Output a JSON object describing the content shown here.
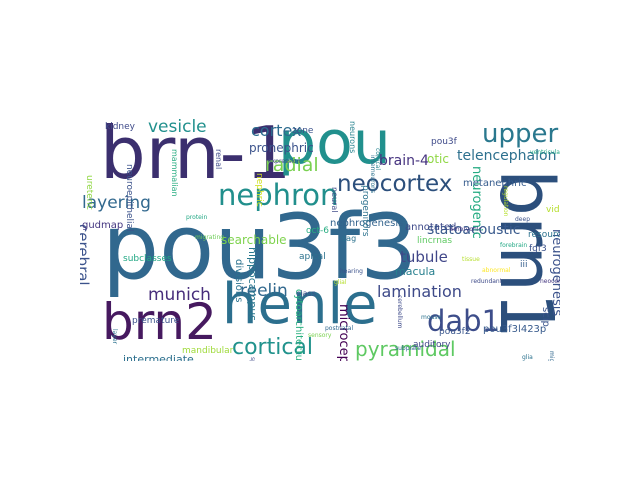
{
  "words": [
    {
      "text": "pou3f3",
      "color": "#31688e",
      "rotate": 0
    },
    {
      "text": "brn-1",
      "color": "#3b2f6e",
      "rotate": 0
    },
    {
      "text": "pou",
      "color": "#21908d",
      "rotate": 0
    },
    {
      "text": "brn1",
      "color": "#2c4f7c",
      "rotate": 90
    },
    {
      "text": "henle",
      "color": "#2c6f8e",
      "rotate": 0
    },
    {
      "text": "brn2",
      "color": "#46195f",
      "rotate": 0
    },
    {
      "text": "neocortex",
      "color": "#2c4f7c",
      "rotate": 0
    },
    {
      "text": "nephron",
      "color": "#218f8c",
      "rotate": 0
    },
    {
      "text": "upper",
      "color": "#2a788e",
      "rotate": 0
    },
    {
      "text": "dab1",
      "color": "#3d4d8a",
      "rotate": 0
    },
    {
      "text": "cortical",
      "color": "#20928c",
      "rotate": 0
    },
    {
      "text": "pyramidal",
      "color": "#5ec962",
      "rotate": 0
    },
    {
      "text": "cortex",
      "color": "#2c6b8e",
      "rotate": 0
    },
    {
      "text": "layering",
      "color": "#31688e",
      "rotate": 0
    },
    {
      "text": "vesicle",
      "color": "#21908d",
      "rotate": 0
    },
    {
      "text": "radial",
      "color": "#7ad151",
      "rotate": 0
    },
    {
      "text": "lamination",
      "color": "#3e4a89",
      "rotate": 0
    },
    {
      "text": "munich",
      "color": "#472d7b",
      "rotate": 0
    },
    {
      "text": "reelin",
      "color": "#31688e",
      "rotate": 0
    },
    {
      "text": "cerebral",
      "color": "#3b528b",
      "rotate": 90
    },
    {
      "text": "tubule",
      "color": "#404688",
      "rotate": 0
    },
    {
      "text": "statoacoustic",
      "color": "#38598c",
      "rotate": 0
    },
    {
      "text": "telencephalon",
      "color": "#2d708e",
      "rotate": 0
    },
    {
      "text": "brain-4",
      "color": "#46337f",
      "rotate": 0
    },
    {
      "text": "otic",
      "color": "#8fd744",
      "rotate": 0
    },
    {
      "text": "pronephric",
      "color": "#3b528b",
      "rotate": 0
    },
    {
      "text": "searchable",
      "color": "#7fd34e",
      "rotate": 0
    },
    {
      "text": "neurogenic",
      "color": "#25ab82",
      "rotate": 90
    },
    {
      "text": "neurogenesis",
      "color": "#3b528b",
      "rotate": 90
    },
    {
      "text": "nephrogenesis",
      "color": "#33638d",
      "rotate": 0
    },
    {
      "text": "microcephaly",
      "color": "#440154",
      "rotate": 90
    },
    {
      "text": "annotated",
      "color": "#3e4a89",
      "rotate": 0
    },
    {
      "text": "macula",
      "color": "#277f8e",
      "rotate": 0
    },
    {
      "text": "hippocampus",
      "color": "#2a788e",
      "rotate": 90
    },
    {
      "text": "divisions",
      "color": "#2c728e",
      "rotate": 90
    },
    {
      "text": "intermediate",
      "color": "#2d708e",
      "rotate": 0
    },
    {
      "text": "mandibular",
      "color": "#9fda3a",
      "rotate": 0
    },
    {
      "text": "auditory",
      "color": "#404688",
      "rotate": 0
    },
    {
      "text": "pou3f2",
      "color": "#39568c",
      "rotate": 0
    },
    {
      "text": "pou3f3l423p",
      "color": "#375a8c",
      "rotate": 0
    },
    {
      "text": "scip",
      "color": "#3a548c",
      "rotate": 90
    },
    {
      "text": "premature",
      "color": "#3b528b",
      "rotate": 0
    },
    {
      "text": "cytoarchitecture",
      "color": "#2ab07f",
      "rotate": 90
    },
    {
      "text": "ureteric",
      "color": "#90d743",
      "rotate": 90
    },
    {
      "text": "subclasses",
      "color": "#22a884",
      "rotate": 0
    },
    {
      "text": "neuroepithelial",
      "color": "#3b528b",
      "rotate": 90
    },
    {
      "text": "gudmap",
      "color": "#453781",
      "rotate": 0
    },
    {
      "text": "metanephric",
      "color": "#365c8d",
      "rotate": 0
    },
    {
      "text": "resource",
      "color": "#2c728e",
      "rotate": 0
    },
    {
      "text": "fgf3",
      "color": "#3b528b",
      "rotate": 0
    },
    {
      "text": "iii",
      "color": "#355f8d",
      "rotate": 0
    },
    {
      "text": "vidir",
      "color": "#b5de2b",
      "rotate": 0
    },
    {
      "text": "oct-6",
      "color": "#27ad81",
      "rotate": 0
    },
    {
      "text": "apical",
      "color": "#2c728e",
      "rotate": 0
    },
    {
      "text": "class",
      "color": "#3b528b",
      "rotate": 0
    },
    {
      "text": "sag",
      "color": "#2c728e",
      "rotate": 0
    },
    {
      "text": "lincrnas",
      "color": "#5ec962",
      "rotate": 0
    },
    {
      "text": "renal",
      "color": "#3e4a89",
      "rotate": 90
    },
    {
      "text": "neural",
      "color": "#3e4a89",
      "rotate": 90
    },
    {
      "text": "neurons",
      "color": "#26828e",
      "rotate": 90
    },
    {
      "text": "mammalian",
      "color": "#27ad81",
      "rotate": 90
    },
    {
      "text": "nephric",
      "color": "#cfe11c",
      "rotate": 90
    },
    {
      "text": "zone",
      "color": "#3b528b",
      "rotate": 0
    },
    {
      "text": "kidney",
      "color": "#3e4a89",
      "rotate": 0
    },
    {
      "text": "progenitors",
      "color": "#2c728e",
      "rotate": 90
    },
    {
      "text": "pou3f",
      "color": "#3e4a89",
      "rotate": 0
    },
    {
      "text": "glial",
      "color": "#b5de2b",
      "rotate": 0
    },
    {
      "text": "subplate",
      "color": "#31688e",
      "rotate": 0
    },
    {
      "text": "migrating",
      "color": "#6ece58",
      "rotate": 0
    },
    {
      "text": "interneurons",
      "color": "#2c728e",
      "rotate": 90
    },
    {
      "text": "regulation",
      "color": "#b5de2b",
      "rotate": 90
    },
    {
      "text": "embryonic",
      "color": "#453781",
      "rotate": 0
    },
    {
      "text": "cerebellum",
      "color": "#3e4a89",
      "rotate": 90
    },
    {
      "text": "forebrain",
      "color": "#22a884",
      "rotate": 0
    },
    {
      "text": "abnormal",
      "color": "#fde725",
      "rotate": 0
    },
    {
      "text": "postnatal",
      "color": "#31688e",
      "rotate": 0
    },
    {
      "text": "cortical",
      "color": "#26828e",
      "rotate": 90
    },
    {
      "text": "expression",
      "color": "#3e4a89",
      "rotate": 0
    },
    {
      "text": "mouse",
      "color": "#2c728e",
      "rotate": 0
    },
    {
      "text": "sensory",
      "color": "#7ad151",
      "rotate": 0
    },
    {
      "text": "specification",
      "color": "#3e4a89",
      "rotate": 90
    },
    {
      "text": "protein",
      "color": "#22a884",
      "rotate": 0
    },
    {
      "text": "hearing",
      "color": "#3b528b",
      "rotate": 0
    },
    {
      "text": "redundant",
      "color": "#3e4a89",
      "rotate": 0
    },
    {
      "text": "glia",
      "color": "#2c728e",
      "rotate": 0
    },
    {
      "text": "migration",
      "color": "#31688e",
      "rotate": 90
    },
    {
      "text": "ventricular",
      "color": "#22a884",
      "rotate": 0
    },
    {
      "text": "tissue",
      "color": "#b5de2b",
      "rotate": 0
    },
    {
      "text": "deep",
      "color": "#3b528b",
      "rotate": 0
    },
    {
      "text": "layer",
      "color": "#2c728e",
      "rotate": 90
    },
    {
      "text": "neocortical",
      "color": "#453781",
      "rotate": 0
    }
  ]
}
